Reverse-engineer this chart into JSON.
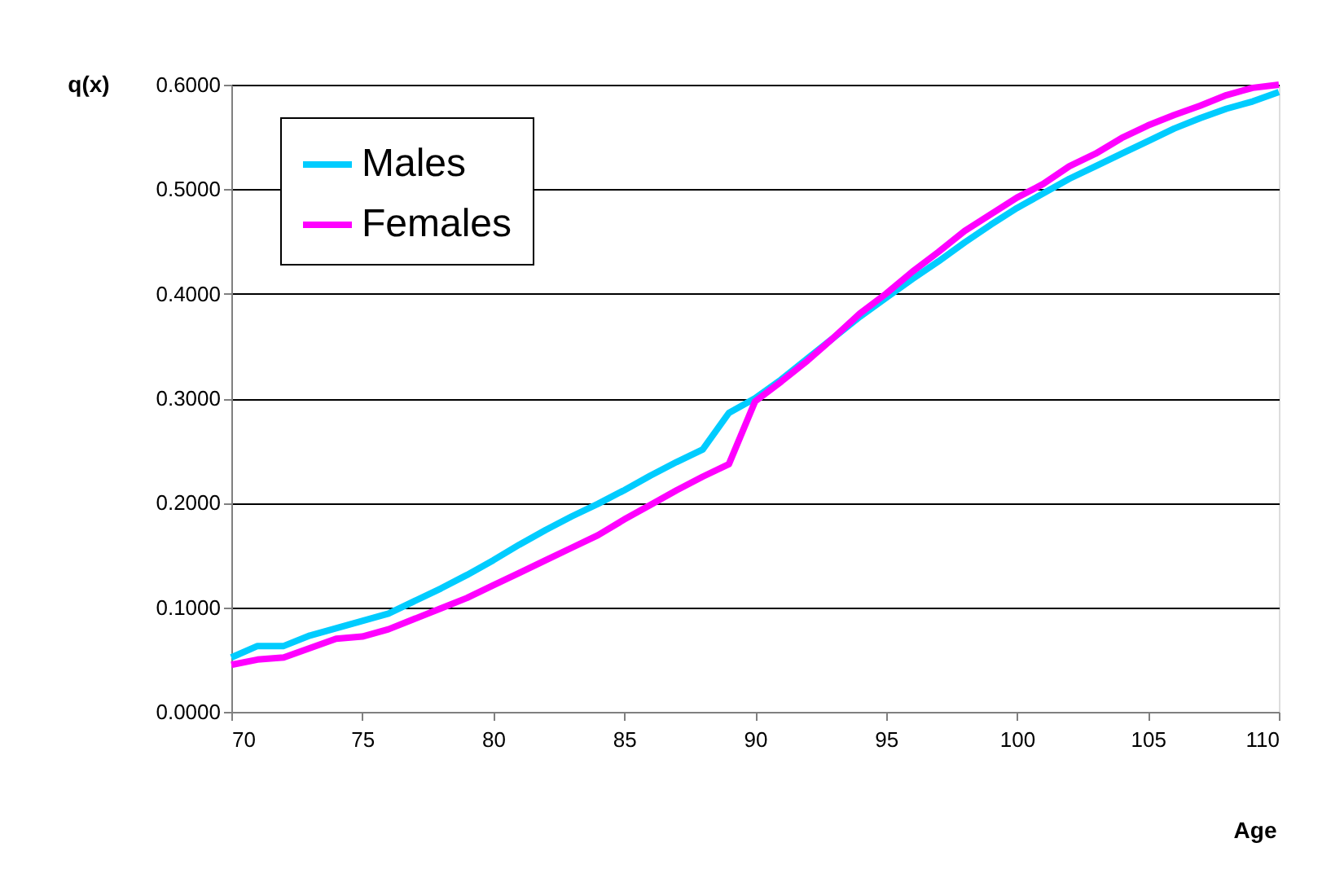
{
  "chart_data": {
    "type": "line",
    "xlabel": "Age",
    "ylabel": "q(x)",
    "x": [
      70,
      71,
      72,
      73,
      74,
      75,
      76,
      77,
      78,
      79,
      80,
      81,
      82,
      83,
      84,
      85,
      86,
      87,
      88,
      89,
      90,
      91,
      92,
      93,
      94,
      95,
      96,
      97,
      98,
      99,
      100,
      101,
      102,
      103,
      104,
      105,
      106,
      107,
      108,
      109,
      110
    ],
    "series": [
      {
        "name": "Males",
        "color": "#00ccff",
        "values": [
          0.052,
          0.063,
          0.063,
          0.073,
          0.08,
          0.087,
          0.094,
          0.106,
          0.118,
          0.131,
          0.145,
          0.16,
          0.174,
          0.187,
          0.199,
          0.212,
          0.226,
          0.239,
          0.251,
          0.286,
          0.3,
          0.318,
          0.338,
          0.358,
          0.378,
          0.396,
          0.414,
          0.431,
          0.449,
          0.466,
          0.482,
          0.496,
          0.51,
          0.522,
          0.534,
          0.546,
          0.558,
          0.568,
          0.577,
          0.584,
          0.593
        ]
      },
      {
        "name": "Females",
        "color": "#ff00ff",
        "values": [
          0.045,
          0.05,
          0.052,
          0.061,
          0.07,
          0.072,
          0.079,
          0.089,
          0.099,
          0.109,
          0.121,
          0.133,
          0.145,
          0.157,
          0.169,
          0.184,
          0.198,
          0.212,
          0.225,
          0.237,
          0.297,
          0.316,
          0.336,
          0.358,
          0.381,
          0.4,
          0.421,
          0.44,
          0.46,
          0.476,
          0.492,
          0.505,
          0.522,
          0.534,
          0.549,
          0.561,
          0.571,
          0.58,
          0.59,
          0.597,
          0.6
        ]
      }
    ],
    "xlim": [
      70,
      110
    ],
    "xticks": [
      70,
      75,
      80,
      85,
      90,
      95,
      100,
      105,
      110
    ],
    "ylim": [
      0,
      0.6
    ],
    "yticks": [
      {
        "value": 0,
        "label": "0.0000"
      },
      {
        "value": 0.1,
        "label": "0.1000"
      },
      {
        "value": 0.2,
        "label": "0.2000"
      },
      {
        "value": 0.3,
        "label": "0.3000"
      },
      {
        "value": 0.4,
        "label": "0.4000"
      },
      {
        "value": 0.5,
        "label": "0.5000"
      },
      {
        "value": 0.6,
        "label": "0.6000"
      }
    ],
    "grid": "y",
    "legend": "top left",
    "line_style": "solid"
  }
}
